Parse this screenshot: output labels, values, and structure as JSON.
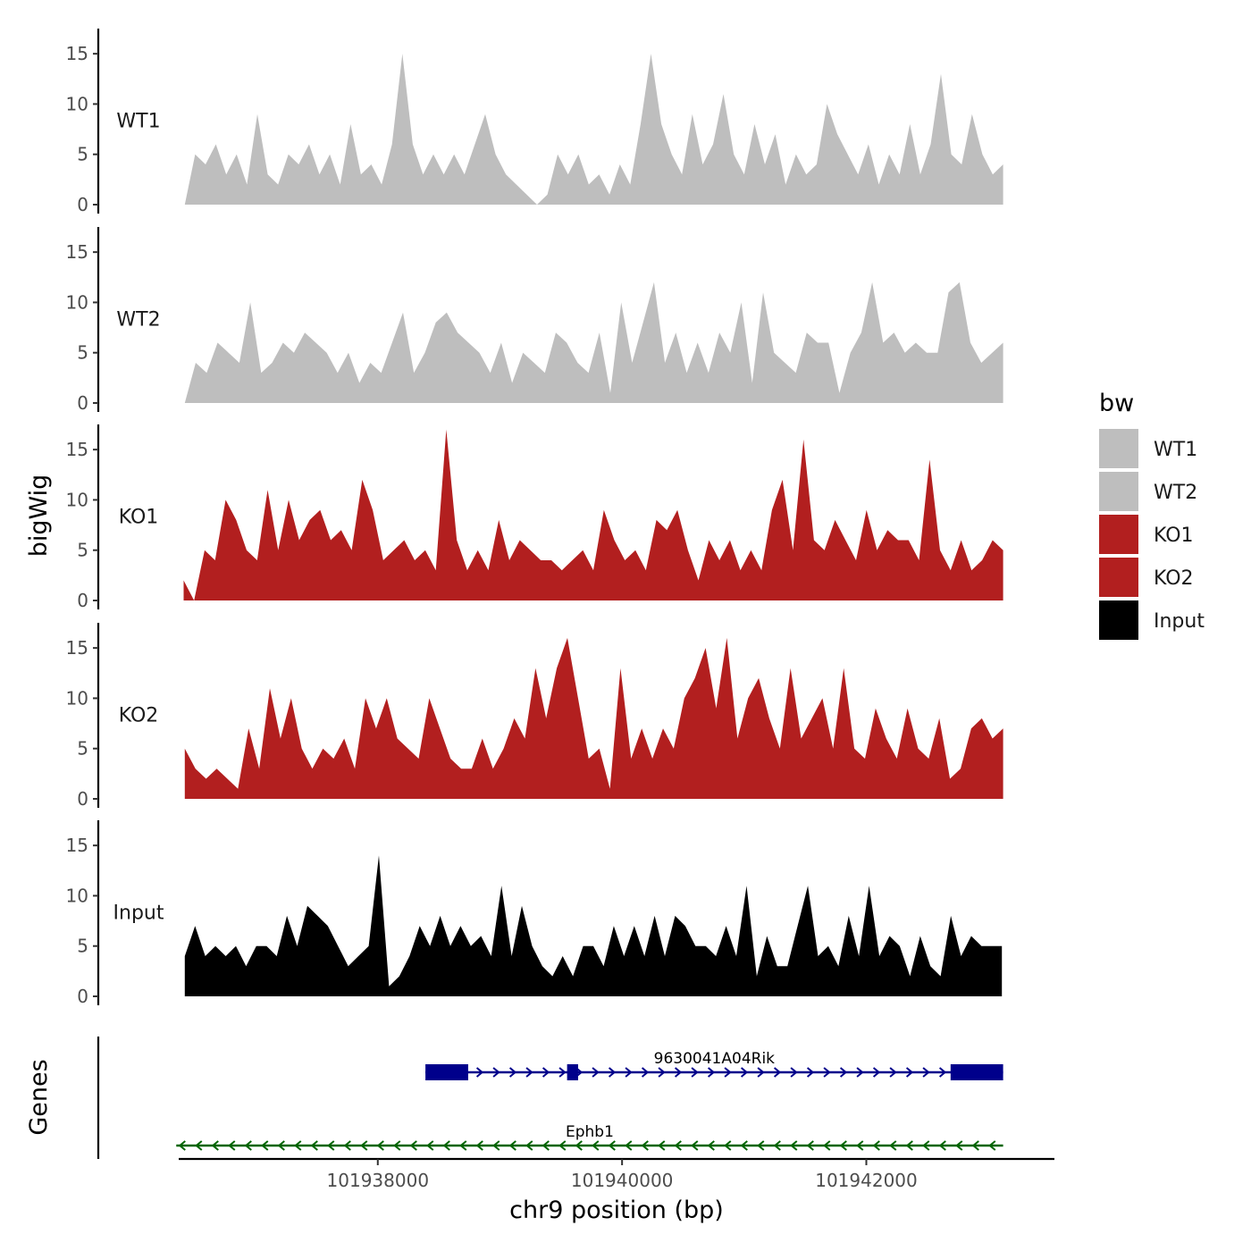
{
  "chart_data": {
    "type": "area",
    "title": "",
    "xlabel": "chr9 position (bp)",
    "ylabel": "bigWig",
    "genes_label": "Genes",
    "xlim": [
      101936370,
      101943540
    ],
    "x_ticks": [
      101938000,
      101940000,
      101942000
    ],
    "x_tick_labels": [
      "101938000",
      "101940000",
      "101942000"
    ],
    "ylim": [
      0,
      17.5
    ],
    "y_ticks": [
      0,
      5,
      10,
      15
    ],
    "y_tick_labels": [
      "0",
      "5",
      "10",
      "15"
    ],
    "grid": false,
    "legend": {
      "title": "bw",
      "position": "right",
      "entries": [
        {
          "label": "WT1",
          "color": "#bebebe"
        },
        {
          "label": "WT2",
          "color": "#bebebe"
        },
        {
          "label": "KO1",
          "color": "#b21f1f"
        },
        {
          "label": "KO2",
          "color": "#b21f1f"
        },
        {
          "label": "Input",
          "color": "#000000"
        }
      ]
    },
    "series": [
      {
        "name": "WT1",
        "color": "#bebebe",
        "x_start": 101936420,
        "x_end": 101943120,
        "values": [
          0,
          5,
          4,
          6,
          3,
          5,
          2,
          9,
          3,
          2,
          5,
          4,
          6,
          3,
          5,
          2,
          8,
          3,
          4,
          2,
          6,
          15,
          6,
          3,
          5,
          3,
          5,
          3,
          6,
          9,
          5,
          3,
          2,
          1,
          0,
          1,
          5,
          3,
          5,
          2,
          3,
          1,
          4,
          2,
          8,
          15,
          8,
          5,
          3,
          9,
          4,
          6,
          11,
          5,
          3,
          8,
          4,
          7,
          2,
          5,
          3,
          4,
          10,
          7,
          5,
          3,
          6,
          2,
          5,
          3,
          8,
          3,
          6,
          13,
          5,
          4,
          9,
          5,
          3,
          4
        ]
      },
      {
        "name": "WT2",
        "color": "#bebebe",
        "x_start": 101936420,
        "x_end": 101943120,
        "values": [
          0,
          4,
          3,
          6,
          5,
          4,
          10,
          3,
          4,
          6,
          5,
          7,
          6,
          5,
          3,
          5,
          2,
          4,
          3,
          6,
          9,
          3,
          5,
          8,
          9,
          7,
          6,
          5,
          3,
          6,
          2,
          5,
          4,
          3,
          7,
          6,
          4,
          3,
          7,
          1,
          10,
          4,
          8,
          12,
          4,
          7,
          3,
          6,
          3,
          7,
          5,
          10,
          2,
          11,
          5,
          4,
          3,
          7,
          6,
          6,
          1,
          5,
          7,
          12,
          6,
          7,
          5,
          6,
          5,
          5,
          11,
          12,
          6,
          4,
          5,
          6
        ]
      },
      {
        "name": "KO1",
        "color": "#b21f1f",
        "x_start": 101936410,
        "x_end": 101943120,
        "values": [
          2,
          0,
          5,
          4,
          10,
          8,
          5,
          4,
          11,
          5,
          10,
          6,
          8,
          9,
          6,
          7,
          5,
          12,
          9,
          4,
          5,
          6,
          4,
          5,
          3,
          17,
          6,
          3,
          5,
          3,
          8,
          4,
          6,
          5,
          4,
          4,
          3,
          4,
          5,
          3,
          9,
          6,
          4,
          5,
          3,
          8,
          7,
          9,
          5,
          2,
          6,
          4,
          6,
          3,
          5,
          3,
          9,
          12,
          5,
          16,
          6,
          5,
          8,
          6,
          4,
          9,
          5,
          7,
          6,
          6,
          4,
          14,
          5,
          3,
          6,
          3,
          4,
          6,
          5
        ]
      },
      {
        "name": "KO2",
        "color": "#b21f1f",
        "x_start": 101936420,
        "x_end": 101943120,
        "values": [
          5,
          3,
          2,
          3,
          2,
          1,
          7,
          3,
          11,
          6,
          10,
          5,
          3,
          5,
          4,
          6,
          3,
          10,
          7,
          10,
          6,
          5,
          4,
          10,
          7,
          4,
          3,
          3,
          6,
          3,
          5,
          8,
          6,
          13,
          8,
          13,
          16,
          10,
          4,
          5,
          1,
          13,
          4,
          7,
          4,
          7,
          5,
          10,
          12,
          15,
          9,
          16,
          6,
          10,
          12,
          8,
          5,
          13,
          6,
          8,
          10,
          5,
          13,
          5,
          4,
          9,
          6,
          4,
          9,
          5,
          4,
          8,
          2,
          3,
          7,
          8,
          6,
          7
        ]
      },
      {
        "name": "Input",
        "color": "#000000",
        "x_start": 101936420,
        "x_end": 101943110,
        "values": [
          4,
          7,
          4,
          5,
          4,
          5,
          3,
          5,
          5,
          4,
          8,
          5,
          9,
          8,
          7,
          5,
          3,
          4,
          5,
          14,
          1,
          2,
          4,
          7,
          5,
          8,
          5,
          7,
          5,
          6,
          4,
          11,
          4,
          9,
          5,
          3,
          2,
          4,
          2,
          5,
          5,
          3,
          7,
          4,
          7,
          4,
          8,
          4,
          8,
          7,
          5,
          5,
          4,
          7,
          4,
          11,
          2,
          6,
          3,
          3,
          7,
          11,
          4,
          5,
          3,
          8,
          4,
          11,
          4,
          6,
          5,
          2,
          6,
          3,
          2,
          8,
          4,
          6,
          5,
          5,
          5
        ]
      }
    ],
    "genes": [
      {
        "name": "9630041A04Rik",
        "strand": "+",
        "color": "#00008b",
        "start": 101938390,
        "end": 101943120,
        "exons": [
          [
            101938390,
            101938740
          ],
          [
            101939550,
            101939640
          ],
          [
            101942690,
            101943120
          ]
        ]
      },
      {
        "name": "Ephb1",
        "strand": "-",
        "color": "#006400",
        "start": 101936350,
        "end": 101943120,
        "exons": []
      }
    ]
  }
}
